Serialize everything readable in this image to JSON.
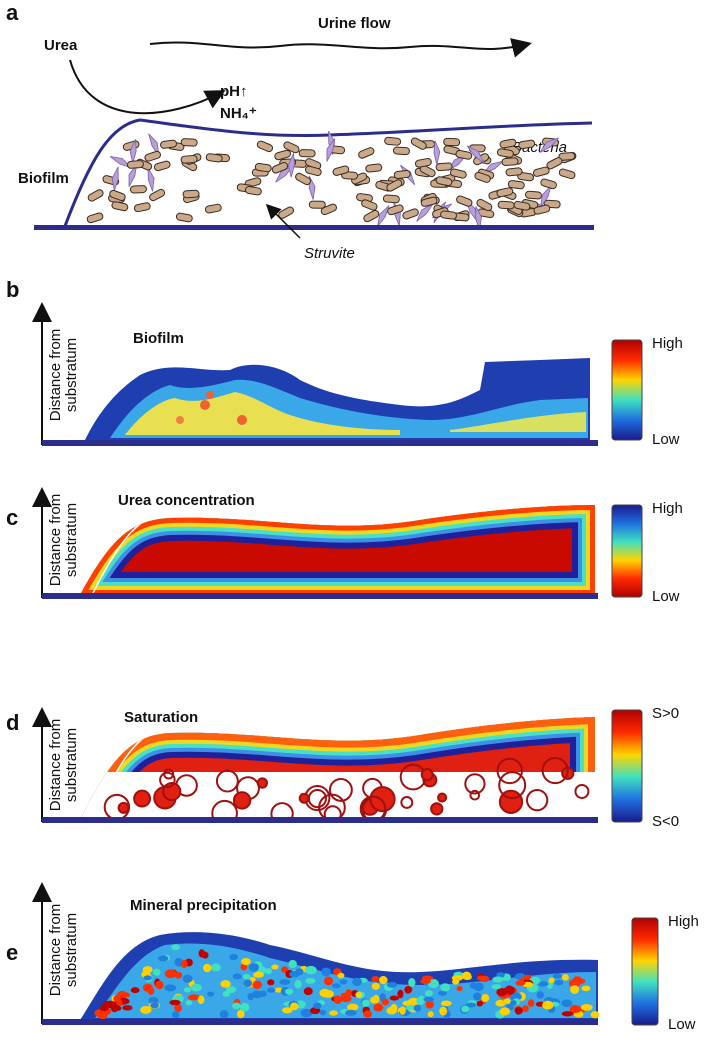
{
  "panel_a": {
    "label": "a",
    "urea": "Urea",
    "urine_flow": "Urine flow",
    "ph": "pH↑",
    "nh4": "NH₄⁺",
    "biofilm": "Biofilm",
    "bacteria": "Bacteria",
    "struvite": "Struvite"
  },
  "panels": [
    {
      "label": "b",
      "y_label_lines": [
        "Distance from",
        "substratum"
      ],
      "title": "Biofilm",
      "scale_high": "High",
      "scale_low": "Low"
    },
    {
      "label": "c",
      "y_label_lines": [
        "Distance from",
        "substratum"
      ],
      "title": "Urea concentration",
      "scale_high": "High",
      "scale_low": "Low"
    },
    {
      "label": "d",
      "y_label_lines": [
        "Distance from",
        "substratum"
      ],
      "title": "Saturation",
      "scale_high": "S>0",
      "scale_low": "S<0"
    },
    {
      "label": "e",
      "y_label_lines": [
        "Distance from",
        "substratum"
      ],
      "title": "Mineral precipitation",
      "scale_high": "High",
      "scale_low": "Low"
    }
  ]
}
